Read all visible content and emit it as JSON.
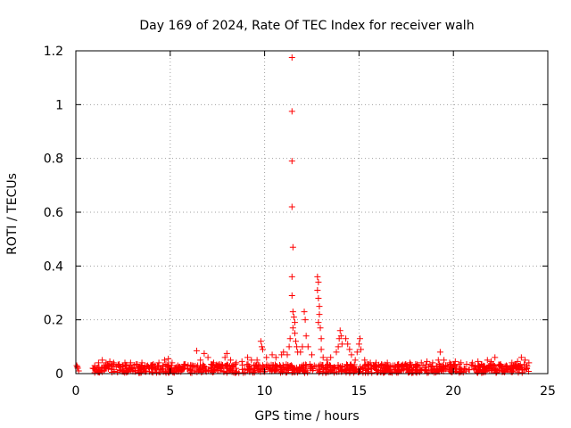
{
  "chart_data": {
    "type": "scatter",
    "title": "Day 169 of 2024, Rate Of TEC Index for receiver walh",
    "xlabel": "GPS time / hours",
    "ylabel": "ROTI / TECUs",
    "xlim": [
      0,
      25
    ],
    "ylim": [
      0,
      1.2
    ],
    "xticks": [
      0,
      5,
      10,
      15,
      20,
      25
    ],
    "yticks": [
      0,
      0.2,
      0.4,
      0.6,
      0.8,
      1,
      1.2
    ],
    "xtick_labels": [
      "0",
      "5",
      "10",
      "15",
      "20",
      "25"
    ],
    "ytick_labels": [
      "0",
      "0.2",
      "0.4",
      "0.6",
      "0.8",
      "1",
      "1.2"
    ],
    "grid": true,
    "marker": "+",
    "color": "#ff0000",
    "series": [
      {
        "name": "ROTI",
        "points": [
          [
            0.05,
            0.03
          ],
          [
            0.1,
            0.02
          ],
          [
            0.15,
            0.01
          ],
          [
            0.08,
            0.025
          ],
          [
            0.9,
            0.02
          ],
          [
            1.0,
            0.03
          ],
          [
            1.2,
            0.04
          ],
          [
            1.4,
            0.05
          ],
          [
            1.6,
            0.04
          ],
          [
            1.8,
            0.045
          ],
          [
            2.0,
            0.04
          ],
          [
            2.3,
            0.035
          ],
          [
            2.6,
            0.04
          ],
          [
            2.9,
            0.04
          ],
          [
            3.2,
            0.035
          ],
          [
            3.5,
            0.04
          ],
          [
            3.8,
            0.03
          ],
          [
            4.1,
            0.035
          ],
          [
            4.4,
            0.04
          ],
          [
            4.7,
            0.05
          ],
          [
            4.9,
            0.055
          ],
          [
            5.1,
            0.04
          ],
          [
            5.4,
            0.03
          ],
          [
            5.8,
            0.035
          ],
          [
            6.1,
            0.03
          ],
          [
            6.4,
            0.085
          ],
          [
            6.6,
            0.05
          ],
          [
            6.8,
            0.075
          ],
          [
            7.0,
            0.06
          ],
          [
            7.3,
            0.04
          ],
          [
            7.6,
            0.035
          ],
          [
            7.9,
            0.06
          ],
          [
            8.0,
            0.075
          ],
          [
            8.2,
            0.05
          ],
          [
            8.5,
            0.04
          ],
          [
            8.8,
            0.045
          ],
          [
            9.1,
            0.06
          ],
          [
            9.3,
            0.05
          ],
          [
            9.6,
            0.05
          ],
          [
            9.8,
            0.12
          ],
          [
            9.85,
            0.1
          ],
          [
            9.9,
            0.09
          ],
          [
            10.1,
            0.06
          ],
          [
            10.4,
            0.07
          ],
          [
            10.6,
            0.06
          ],
          [
            10.9,
            0.07
          ],
          [
            11.0,
            0.08
          ],
          [
            11.2,
            0.07
          ],
          [
            11.3,
            0.1
          ],
          [
            11.35,
            0.13
          ],
          [
            11.45,
            1.175
          ],
          [
            11.45,
            0.975
          ],
          [
            11.45,
            0.79
          ],
          [
            11.45,
            0.62
          ],
          [
            11.5,
            0.47
          ],
          [
            11.45,
            0.36
          ],
          [
            11.45,
            0.29
          ],
          [
            11.5,
            0.23
          ],
          [
            11.55,
            0.21
          ],
          [
            11.6,
            0.19
          ],
          [
            11.5,
            0.17
          ],
          [
            11.6,
            0.15
          ],
          [
            11.65,
            0.12
          ],
          [
            11.7,
            0.1
          ],
          [
            11.75,
            0.08
          ],
          [
            11.9,
            0.08
          ],
          [
            12.0,
            0.1
          ],
          [
            12.1,
            0.23
          ],
          [
            12.15,
            0.2
          ],
          [
            12.2,
            0.14
          ],
          [
            12.3,
            0.1
          ],
          [
            12.5,
            0.07
          ],
          [
            12.8,
            0.36
          ],
          [
            12.85,
            0.34
          ],
          [
            12.8,
            0.31
          ],
          [
            12.85,
            0.28
          ],
          [
            12.9,
            0.25
          ],
          [
            12.9,
            0.22
          ],
          [
            12.85,
            0.19
          ],
          [
            12.95,
            0.17
          ],
          [
            13.0,
            0.13
          ],
          [
            13.0,
            0.09
          ],
          [
            13.1,
            0.06
          ],
          [
            13.3,
            0.05
          ],
          [
            13.5,
            0.06
          ],
          [
            13.8,
            0.08
          ],
          [
            13.9,
            0.1
          ],
          [
            13.95,
            0.13
          ],
          [
            14.0,
            0.16
          ],
          [
            14.05,
            0.14
          ],
          [
            14.1,
            0.11
          ],
          [
            14.3,
            0.13
          ],
          [
            14.4,
            0.11
          ],
          [
            14.5,
            0.09
          ],
          [
            14.6,
            0.07
          ],
          [
            14.8,
            0.05
          ],
          [
            14.9,
            0.08
          ],
          [
            15.0,
            0.11
          ],
          [
            15.05,
            0.13
          ],
          [
            15.1,
            0.09
          ],
          [
            15.3,
            0.05
          ],
          [
            15.6,
            0.04
          ],
          [
            15.9,
            0.04
          ],
          [
            16.2,
            0.035
          ],
          [
            16.5,
            0.04
          ],
          [
            16.8,
            0.03
          ],
          [
            17.1,
            0.035
          ],
          [
            17.4,
            0.03
          ],
          [
            17.7,
            0.04
          ],
          [
            18.0,
            0.035
          ],
          [
            18.3,
            0.04
          ],
          [
            18.6,
            0.045
          ],
          [
            18.9,
            0.04
          ],
          [
            19.2,
            0.05
          ],
          [
            19.3,
            0.08
          ],
          [
            19.5,
            0.05
          ],
          [
            19.8,
            0.04
          ],
          [
            20.1,
            0.045
          ],
          [
            20.4,
            0.04
          ],
          [
            20.7,
            0.035
          ],
          [
            21.0,
            0.04
          ],
          [
            21.3,
            0.045
          ],
          [
            21.5,
            0.035
          ],
          [
            21.8,
            0.05
          ],
          [
            22.0,
            0.045
          ],
          [
            22.2,
            0.06
          ],
          [
            22.5,
            0.035
          ],
          [
            22.8,
            0.03
          ],
          [
            23.1,
            0.04
          ],
          [
            23.4,
            0.045
          ],
          [
            23.6,
            0.06
          ],
          [
            23.8,
            0.05
          ],
          [
            24.0,
            0.04
          ]
        ],
        "baseline": {
          "x_range": [
            0.9,
            24.0
          ],
          "y_min": 0.003,
          "y_max": 0.035,
          "density": 900
        }
      }
    ]
  }
}
